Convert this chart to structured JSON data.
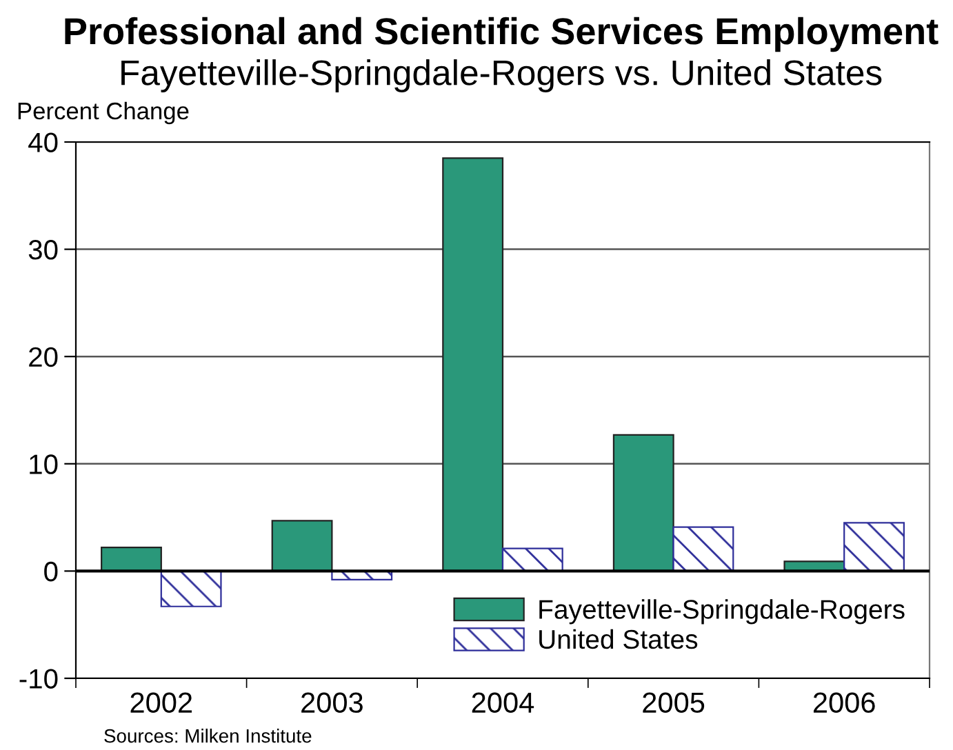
{
  "chart_data": {
    "type": "bar",
    "title": "Professional and Scientific Services Employment",
    "subtitle": "Fayetteville-Springdale-Rogers vs. United States",
    "ylabel": "Percent Change",
    "categories": [
      "2002",
      "2003",
      "2004",
      "2005",
      "2006"
    ],
    "series": [
      {
        "name": "Fayetteville-Springdale-Rogers",
        "color": "#2a987a",
        "values": [
          2.2,
          4.7,
          38.5,
          12.7,
          0.9
        ]
      },
      {
        "name": "United States",
        "color": "#2e2e9a",
        "values": [
          -3.3,
          -0.8,
          2.1,
          4.1,
          4.5
        ]
      }
    ],
    "ylim": [
      -10,
      40
    ],
    "yticks": [
      -10,
      0,
      10,
      20,
      30,
      40
    ],
    "grid": "y",
    "legend": "bottom right",
    "ref_lines": [
      {
        "axis": "y",
        "value": 0,
        "color": "#000000"
      }
    ],
    "annotations": [
      "Sources: Milken Institute"
    ]
  }
}
